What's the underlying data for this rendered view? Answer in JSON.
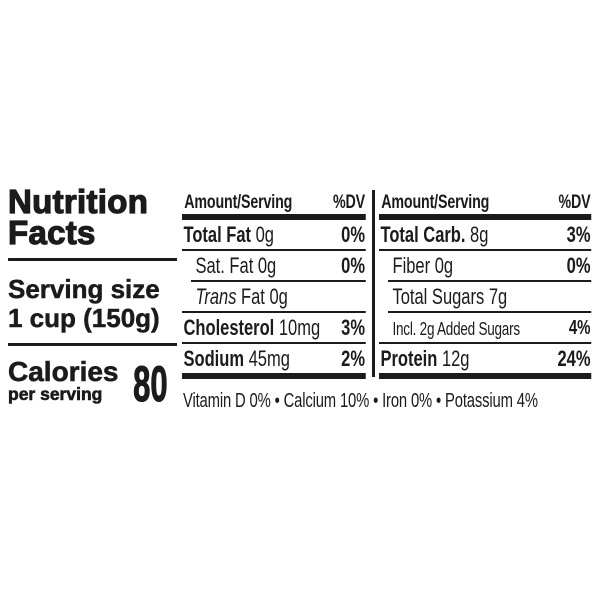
{
  "title": {
    "line1": "Nutrition",
    "line2": "Facts"
  },
  "serving": {
    "label": "Serving size",
    "value": "1 cup (150g)"
  },
  "calories": {
    "label": "Calories",
    "sublabel": "per serving",
    "value": "80"
  },
  "columns": [
    {
      "header": {
        "amount_label": "Amount/Serving",
        "dv_label": "%DV"
      },
      "rows": [
        {
          "label": "Total Fat",
          "amount": "0g",
          "dv": "0%"
        },
        {
          "label": "Sat. Fat",
          "amount": "0g",
          "dv": "0%"
        },
        {
          "label_italic": "Trans",
          "label": "Fat",
          "amount": "0g",
          "dv": ""
        },
        {
          "label": "Cholesterol",
          "amount": "10mg",
          "dv": "3%"
        },
        {
          "label": "Sodium",
          "amount": "45mg",
          "dv": "2%"
        }
      ]
    },
    {
      "header": {
        "amount_label": "Amount/Serving",
        "dv_label": "%DV"
      },
      "rows": [
        {
          "label": "Total Carb.",
          "amount": "8g",
          "dv": "3%"
        },
        {
          "label": "Fiber",
          "amount": "0g",
          "dv": "0%"
        },
        {
          "label": "Total Sugars",
          "amount": "7g",
          "dv": ""
        },
        {
          "label": "Incl. 2g Added Sugars",
          "amount": "",
          "dv": "4%"
        },
        {
          "label": "Protein",
          "amount": "12g",
          "dv": "24%"
        }
      ]
    }
  ],
  "micronutrients": {
    "items": [
      "Vitamin D 0%",
      "Calcium 10%",
      "Iron 0%",
      "Potassium 4%"
    ],
    "text": "Vitamin D 0% • Calcium 10% • Iron 0% • Potassium 4%"
  },
  "colors": {
    "ink": "#1c1a1a",
    "background": "#ffffff"
  }
}
